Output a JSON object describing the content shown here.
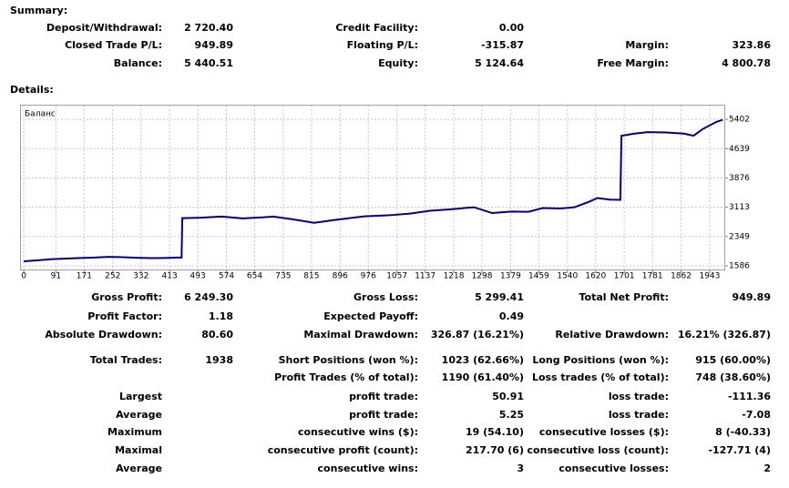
{
  "summary": {
    "title": "Summary:",
    "rows": [
      {
        "c1": {
          "label": "Deposit/Withdrawal:",
          "value": "2 720.40"
        },
        "c2": {
          "label": "Credit Facility:",
          "value": "0.00"
        }
      },
      {
        "c1": {
          "label": "Closed Trade P/L:",
          "value": "949.89"
        },
        "c2": {
          "label": "Floating P/L:",
          "value": "-315.87"
        },
        "c3": {
          "label": "Margin:",
          "value": "323.86"
        }
      },
      {
        "c1": {
          "label": "Balance:",
          "value": "5 440.51"
        },
        "c2": {
          "label": "Equity:",
          "value": "5 124.64"
        },
        "c3": {
          "label": "Free Margin:",
          "value": "4 800.78"
        }
      }
    ]
  },
  "details": {
    "title": "Details:",
    "rows": [
      {
        "c1": {
          "label": "Gross Profit:",
          "value": "6 249.30"
        },
        "c2": {
          "label": "Gross Loss:",
          "value": "5 299.41"
        },
        "c3": {
          "label": "Total Net Profit:",
          "value": "949.89"
        }
      },
      {
        "c1": {
          "label": "Profit Factor:",
          "value": "1.18"
        },
        "c2": {
          "label": "Expected Payoff:",
          "value": "0.49"
        }
      },
      {
        "c1": {
          "label": "Absolute Drawdown:",
          "value": "80.60"
        },
        "c2": {
          "label": "Maximal Drawdown:",
          "value": "326.87 (16.21%)"
        },
        "c3": {
          "label": "Relative Drawdown:",
          "value": "16.21% (326.87)"
        }
      },
      {
        "c1": {
          "label": "Total Trades:",
          "value": "1938"
        },
        "c2": {
          "label": "Short Positions (won %):",
          "value": "1023 (62.66%)"
        },
        "c3": {
          "label": "Long Positions (won %):",
          "value": "915 (60.00%)"
        }
      },
      {
        "c2": {
          "label": "Profit Trades (% of total):",
          "value": "1190 (61.40%)"
        },
        "c3": {
          "label": "Loss trades (% of total):",
          "value": "748 (38.60%)"
        }
      },
      {
        "c1": {
          "label": "Largest"
        },
        "c2": {
          "label": "profit trade:",
          "value": "50.91"
        },
        "c3": {
          "label": "loss trade:",
          "value": "-111.36"
        }
      },
      {
        "c1": {
          "label": "Average"
        },
        "c2": {
          "label": "profit trade:",
          "value": "5.25"
        },
        "c3": {
          "label": "loss trade:",
          "value": "-7.08"
        }
      },
      {
        "c1": {
          "label": "Maximum"
        },
        "c2": {
          "label": "consecutive wins ($):",
          "value": "19 (54.10)"
        },
        "c3": {
          "label": "consecutive losses ($):",
          "value": "8 (-40.33)"
        }
      },
      {
        "c1": {
          "label": "Maximal"
        },
        "c2": {
          "label": "consecutive profit (count):",
          "value": "217.70 (6)"
        },
        "c3": {
          "label": "consecutive loss (count):",
          "value": "-127.71 (4)"
        }
      },
      {
        "c1": {
          "label": "Average"
        },
        "c2": {
          "label": "consecutive wins:",
          "value": "3"
        },
        "c3": {
          "label": "consecutive losses:",
          "value": "2"
        }
      }
    ]
  },
  "chart_data": {
    "type": "line",
    "x": [
      0,
      40,
      80,
      120,
      160,
      200,
      240,
      280,
      320,
      360,
      400,
      435,
      447,
      449,
      500,
      560,
      620,
      680,
      706,
      760,
      823,
      880,
      965,
      1030,
      1094,
      1150,
      1210,
      1275,
      1327,
      1380,
      1430,
      1470,
      1520,
      1560,
      1600,
      1625,
      1660,
      1690,
      1693,
      1730,
      1767,
      1820,
      1870,
      1897,
      1922,
      1961,
      1980
    ],
    "series": [
      {
        "name": "Баланс",
        "color": "#000080",
        "values": [
          1705,
          1730,
          1760,
          1775,
          1790,
          1800,
          1820,
          1810,
          1795,
          1785,
          1790,
          1800,
          1800,
          2827,
          2840,
          2870,
          2820,
          2850,
          2870,
          2800,
          2707,
          2780,
          2875,
          2900,
          2946,
          3020,
          3060,
          3113,
          2960,
          3000,
          2994,
          3090,
          3080,
          3113,
          3250,
          3352,
          3310,
          3305,
          4975,
          5030,
          5070,
          5060,
          5030,
          4975,
          5142,
          5333,
          5390
        ]
      }
    ],
    "xlim": [
      -8,
      1987
    ],
    "ylim": [
      1490,
      5760
    ],
    "xticks": [
      0,
      91,
      171,
      252,
      332,
      413,
      493,
      574,
      654,
      735,
      815,
      896,
      976,
      1057,
      1137,
      1218,
      1298,
      1379,
      1459,
      1540,
      1620,
      1701,
      1781,
      1862,
      1943
    ],
    "yticks": [
      1586,
      2349,
      3113,
      3876,
      4639,
      5402
    ],
    "grid": true
  }
}
